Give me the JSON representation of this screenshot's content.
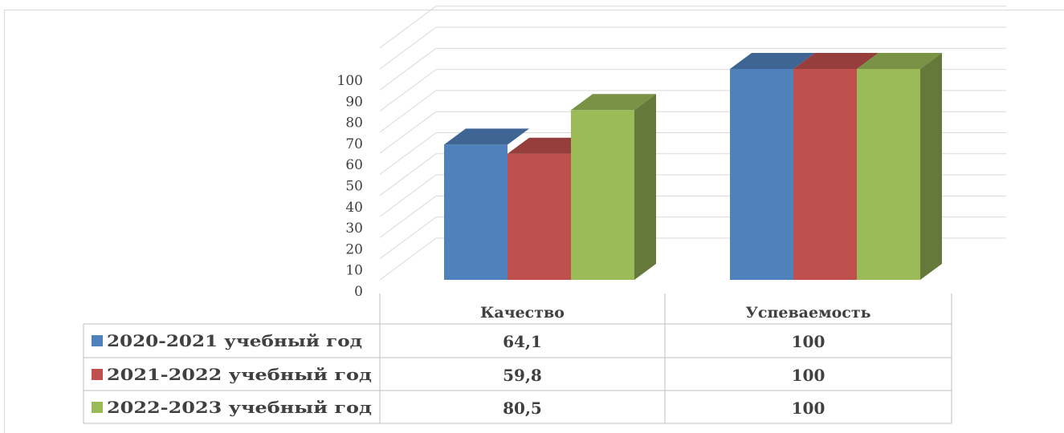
{
  "chart_data": {
    "type": "bar",
    "categories": [
      "Качество",
      "Успеваемость"
    ],
    "series": [
      {
        "name": "2020-2021 учебный год",
        "values": [
          64.1,
          100
        ],
        "labels": [
          "64,1",
          "100"
        ],
        "color": "#4f81bd"
      },
      {
        "name": "2021-2022 учебный год",
        "values": [
          59.8,
          100
        ],
        "labels": [
          "59,8",
          "100"
        ],
        "color": "#c0504d"
      },
      {
        "name": "2022-2023 учебный год",
        "values": [
          80.5,
          100
        ],
        "labels": [
          "80,5",
          "100"
        ],
        "color": "#9bbb59"
      }
    ],
    "yticks": [
      "0",
      "10",
      "20",
      "30",
      "40",
      "50",
      "60",
      "70",
      "80",
      "90",
      "100"
    ],
    "ylim": [
      0,
      100
    ],
    "grid": true,
    "legend": "data-table"
  }
}
